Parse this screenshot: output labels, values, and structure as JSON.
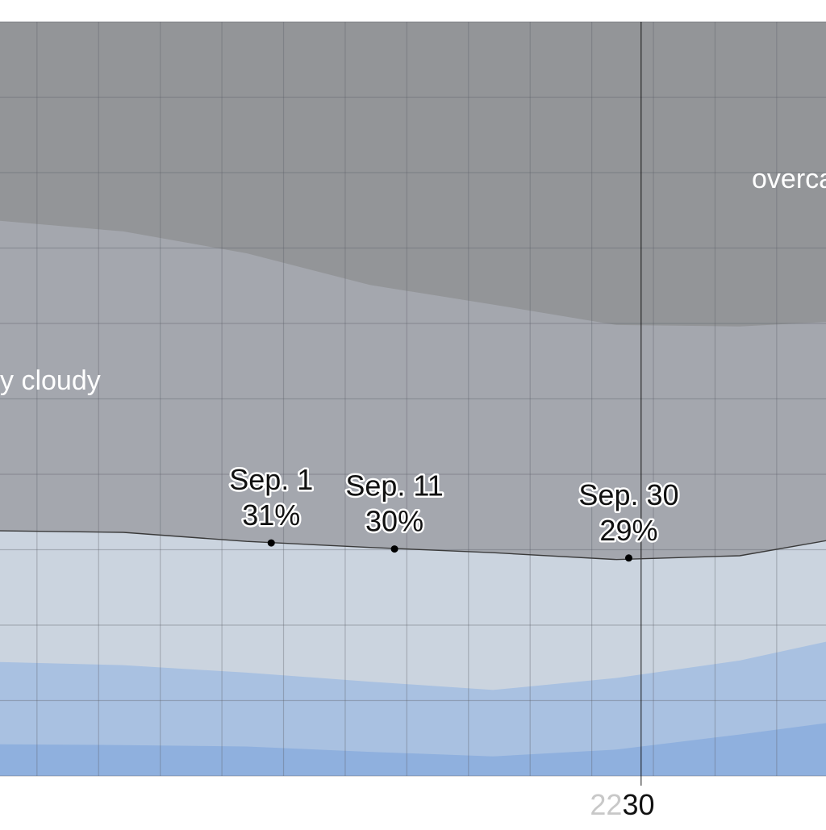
{
  "chart_data": {
    "type": "area",
    "title": "",
    "xlabel": "",
    "ylabel": "",
    "ylim": [
      0,
      100
    ],
    "grid": true,
    "x_unit": "day of year (Aug 10 - Oct 16 visible window)",
    "x_visible_range": [
      "Aug. 10",
      "Oct. 16"
    ],
    "x_tick_labels": [
      {
        "date": "Sep. 30",
        "label": "30"
      }
    ],
    "x_tick_label_ghost": "22",
    "region_labels": [
      {
        "text": "overcast",
        "band": "overcast"
      },
      {
        "text": "y cloudy",
        "band": "mostly_cloudy"
      }
    ],
    "series": [
      {
        "band": "clear",
        "color": "#8fb0de",
        "x": [
          "Aug. 10",
          "Aug. 20",
          "Aug. 30",
          "Sep. 9",
          "Sep. 19",
          "Sep. 29",
          "Oct. 9",
          "Oct. 16"
        ],
        "upper_boundary": [
          4.2,
          4.1,
          3.9,
          3.2,
          2.6,
          3.5,
          5.5,
          7.0
        ]
      },
      {
        "band": "mostly_clear",
        "color": "#a9c1e1",
        "x": [
          "Aug. 10",
          "Aug. 20",
          "Aug. 30",
          "Sep. 9",
          "Sep. 19",
          "Sep. 29",
          "Oct. 9",
          "Oct. 16"
        ],
        "upper_boundary": [
          15.1,
          14.7,
          13.7,
          12.5,
          11.4,
          13.0,
          15.3,
          17.8
        ]
      },
      {
        "band": "partly_cloudy",
        "color": "#cbd4df",
        "x": [
          "Aug. 10",
          "Aug. 20",
          "Aug. 30",
          "Sep. 9",
          "Sep. 19",
          "Sep. 29",
          "Oct. 9",
          "Oct. 16"
        ],
        "upper_boundary": [
          32.5,
          32.3,
          31.1,
          30.3,
          29.6,
          28.7,
          29.2,
          31.2
        ]
      },
      {
        "band": "mostly_cloudy",
        "color": "#a4a7ae",
        "x": [
          "Aug. 10",
          "Aug. 20",
          "Aug. 30",
          "Sep. 9",
          "Sep. 19",
          "Sep. 29",
          "Oct. 9",
          "Oct. 16"
        ],
        "upper_boundary": [
          73.6,
          72.2,
          69.3,
          65.1,
          62.5,
          59.8,
          59.6,
          60.2
        ]
      },
      {
        "band": "overcast",
        "color": "#939598",
        "x": [
          "Aug. 10",
          "Oct. 16"
        ],
        "upper_boundary": [
          100,
          100
        ]
      }
    ],
    "annotations": [
      {
        "date_label": "Sep. 1",
        "value_label": "31%",
        "x": "Sep. 1",
        "y": 30.9
      },
      {
        "date_label": "Sep. 11",
        "value_label": "30%",
        "x": "Sep. 11",
        "y": 30.1
      },
      {
        "date_label": "Sep. 30",
        "value_label": "29%",
        "x": "Sep. 30",
        "y": 28.9
      }
    ]
  }
}
